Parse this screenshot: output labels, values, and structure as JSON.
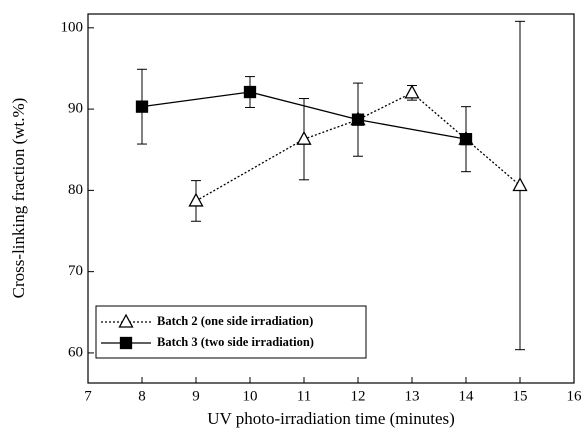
{
  "chart_data": {
    "type": "line",
    "x_label": "UV photo-irradiation time (minutes)",
    "y_label": "Cross-linking fraction (wt.%)",
    "xlim": [
      7,
      16
    ],
    "xticks": [
      7,
      8,
      9,
      10,
      11,
      12,
      13,
      14,
      15,
      16
    ],
    "ylim": [
      56.3,
      101.7
    ],
    "yticks": [
      60,
      70,
      80,
      90,
      100
    ],
    "legend": "lower left",
    "series": [
      {
        "name": "Batch 2 (one side irradiation)",
        "color": "#000000",
        "marker": "triangle",
        "line_style": "dotted",
        "x": [
          9,
          11,
          12,
          13,
          14,
          15
        ],
        "values": [
          78.7,
          86.3,
          88.7,
          92.0,
          86.3,
          80.6
        ],
        "errors": [
          2.5,
          5.0,
          null,
          0.9,
          null,
          20.2
        ]
      },
      {
        "name": "Batch 3 (two side irradiation)",
        "color": "#000000",
        "marker": "square",
        "line_style": "solid",
        "x": [
          8,
          10,
          12,
          14
        ],
        "values": [
          90.3,
          92.1,
          88.7,
          86.3
        ],
        "errors": [
          4.6,
          1.9,
          4.5,
          4.0
        ]
      }
    ]
  }
}
